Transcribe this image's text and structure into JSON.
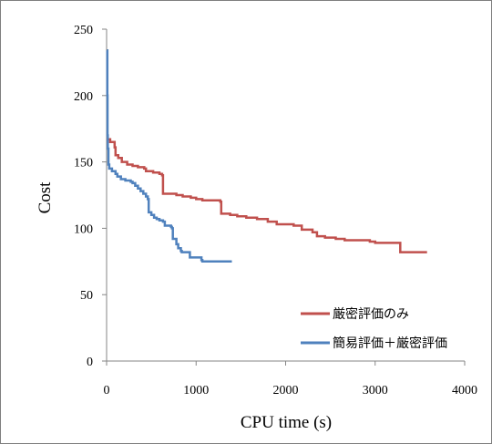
{
  "chart_data": {
    "type": "line",
    "title": "",
    "xlabel": "CPU time (s)",
    "ylabel": "Cost",
    "xlim": [
      0,
      4000
    ],
    "ylim": [
      0,
      250
    ],
    "xticks": [
      0,
      1000,
      2000,
      3000,
      4000
    ],
    "yticks": [
      0,
      50,
      100,
      150,
      200,
      250
    ],
    "grid": false,
    "legend_position": "bottom-right",
    "series": [
      {
        "name": "厳密評価のみ",
        "color": "#c0504d",
        "points": [
          [
            0,
            167
          ],
          [
            30,
            167
          ],
          [
            40,
            165
          ],
          [
            80,
            165
          ],
          [
            90,
            161
          ],
          [
            100,
            155
          ],
          [
            130,
            153
          ],
          [
            170,
            150
          ],
          [
            230,
            148
          ],
          [
            290,
            147
          ],
          [
            350,
            146
          ],
          [
            420,
            145
          ],
          [
            440,
            143
          ],
          [
            520,
            142
          ],
          [
            590,
            141
          ],
          [
            620,
            140
          ],
          [
            630,
            126
          ],
          [
            720,
            126
          ],
          [
            780,
            125
          ],
          [
            850,
            124
          ],
          [
            940,
            123
          ],
          [
            1000,
            122
          ],
          [
            1070,
            121
          ],
          [
            1170,
            121
          ],
          [
            1270,
            120
          ],
          [
            1280,
            111
          ],
          [
            1380,
            110
          ],
          [
            1460,
            109
          ],
          [
            1560,
            108
          ],
          [
            1680,
            107
          ],
          [
            1800,
            105
          ],
          [
            1900,
            103
          ],
          [
            2090,
            102
          ],
          [
            2180,
            99
          ],
          [
            2300,
            97
          ],
          [
            2350,
            94
          ],
          [
            2440,
            93
          ],
          [
            2560,
            92
          ],
          [
            2660,
            91
          ],
          [
            2870,
            91
          ],
          [
            2940,
            90
          ],
          [
            3000,
            89
          ],
          [
            3260,
            89
          ],
          [
            3280,
            82
          ],
          [
            3580,
            82
          ]
        ]
      },
      {
        "name": "簡易評価＋厳密評価",
        "color": "#4f81bd",
        "points": [
          [
            5,
            234
          ],
          [
            8,
            200
          ],
          [
            10,
            170
          ],
          [
            13,
            160
          ],
          [
            20,
            148
          ],
          [
            30,
            145
          ],
          [
            60,
            143
          ],
          [
            100,
            141
          ],
          [
            120,
            139
          ],
          [
            160,
            137
          ],
          [
            210,
            136
          ],
          [
            270,
            135
          ],
          [
            290,
            134
          ],
          [
            320,
            132
          ],
          [
            350,
            130
          ],
          [
            380,
            128
          ],
          [
            410,
            126
          ],
          [
            440,
            124
          ],
          [
            460,
            122
          ],
          [
            470,
            112
          ],
          [
            500,
            110
          ],
          [
            530,
            108
          ],
          [
            560,
            107
          ],
          [
            590,
            106
          ],
          [
            630,
            105
          ],
          [
            650,
            102
          ],
          [
            720,
            101
          ],
          [
            730,
            100
          ],
          [
            740,
            92
          ],
          [
            780,
            88
          ],
          [
            800,
            85
          ],
          [
            830,
            83
          ],
          [
            840,
            82
          ],
          [
            920,
            82
          ],
          [
            930,
            78
          ],
          [
            1020,
            78
          ],
          [
            1060,
            76
          ],
          [
            1070,
            75
          ],
          [
            1400,
            75
          ]
        ]
      }
    ]
  }
}
